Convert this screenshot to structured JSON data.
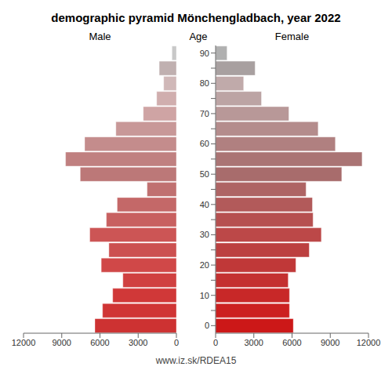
{
  "chart_data": {
    "type": "bar",
    "orientation": "horizontal",
    "title": "demographic pyramid Mönchengladbach, year 2022",
    "annotations": [
      "www.iz.sk/RDEA15"
    ],
    "ylabel": "Age",
    "categories": [
      0,
      null,
      10,
      null,
      20,
      null,
      30,
      null,
      40,
      null,
      50,
      null,
      60,
      null,
      70,
      null,
      80,
      null,
      90
    ],
    "xlim": [
      0,
      12000
    ],
    "xticks": [
      0,
      3000,
      6000,
      9000,
      12000
    ],
    "tick_labels": true,
    "grid": false,
    "series": [
      {
        "name": "Male",
        "values": [
          6400,
          5800,
          5000,
          4200,
          5900,
          5300,
          6800,
          5500,
          4650,
          2300,
          7550,
          8700,
          7200,
          4750,
          2600,
          1550,
          1000,
          1350,
          350
        ],
        "colors": [
          "#cd3232",
          "#d03535",
          "#d03838",
          "#d04040",
          "#d04848",
          "#cc5050",
          "#cc5555",
          "#c86060",
          "#c46868",
          "#c07070",
          "#bc7878",
          "#c08080",
          "#c48c8c",
          "#c89898",
          "#cfa4a4",
          "#d0aeae",
          "#d0b8b8",
          "#c0b0b0",
          "#c8c8c8"
        ]
      },
      {
        "name": "Female",
        "values": [
          6100,
          5800,
          5800,
          5700,
          6300,
          7350,
          8300,
          7650,
          7600,
          7100,
          9900,
          11500,
          9400,
          8050,
          5750,
          3600,
          2200,
          3100,
          900
        ],
        "colors": [
          "#cc1818",
          "#cc2020",
          "#c82828",
          "#c43030",
          "#c03838",
          "#bc4040",
          "#bc4848",
          "#b65050",
          "#b25a5a",
          "#ae6464",
          "#a86c6c",
          "#aa7474",
          "#b08080",
          "#b48c8c",
          "#b89898",
          "#bca4a4",
          "#c0aaaa",
          "#a8a0a0",
          "#b0b0b0"
        ]
      }
    ]
  }
}
